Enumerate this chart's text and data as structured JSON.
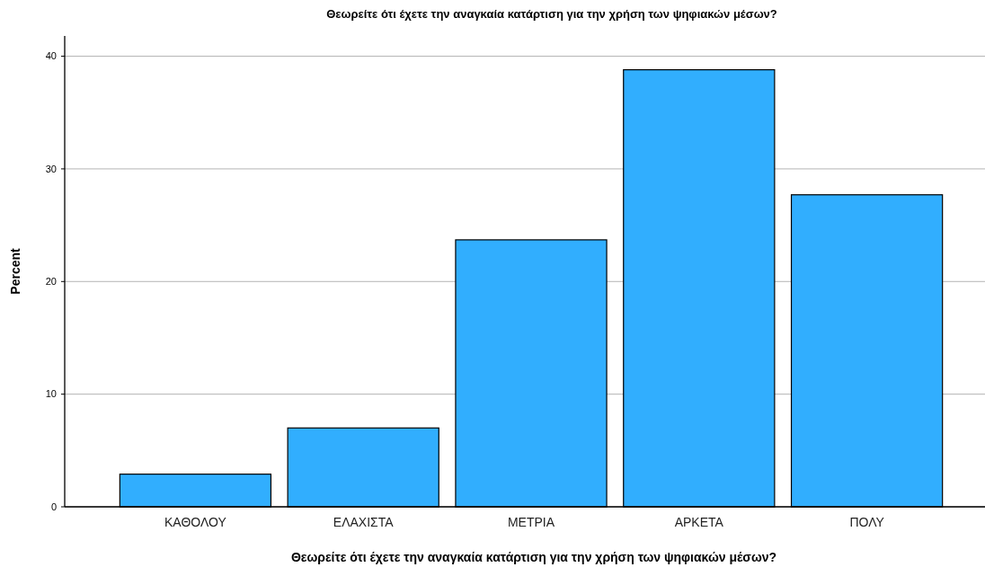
{
  "chart_data": {
    "type": "bar",
    "title": "Θεωρείτε ότι έχετε την αναγκαία κατάρτιση για την χρήση των ψηφιακών μέσων?",
    "xlabel": "Θεωρείτε ότι έχετε την αναγκαία κατάρτιση για την χρήση των ψηφιακών μέσων?",
    "ylabel": "Percent",
    "categories": [
      "ΚΑΘΟΛΟΥ",
      "ΕΛΑΧΙΣΤΑ",
      "ΜΕΤΡΙΑ",
      "ΑΡΚΕΤΑ",
      "ΠΟΛΥ"
    ],
    "values": [
      2.9,
      7.0,
      23.7,
      38.8,
      27.7
    ],
    "color": "#31aefe",
    "ylim": [
      0,
      41.8
    ],
    "yticks": [
      0,
      10,
      20,
      30,
      40
    ],
    "grid": "y"
  }
}
